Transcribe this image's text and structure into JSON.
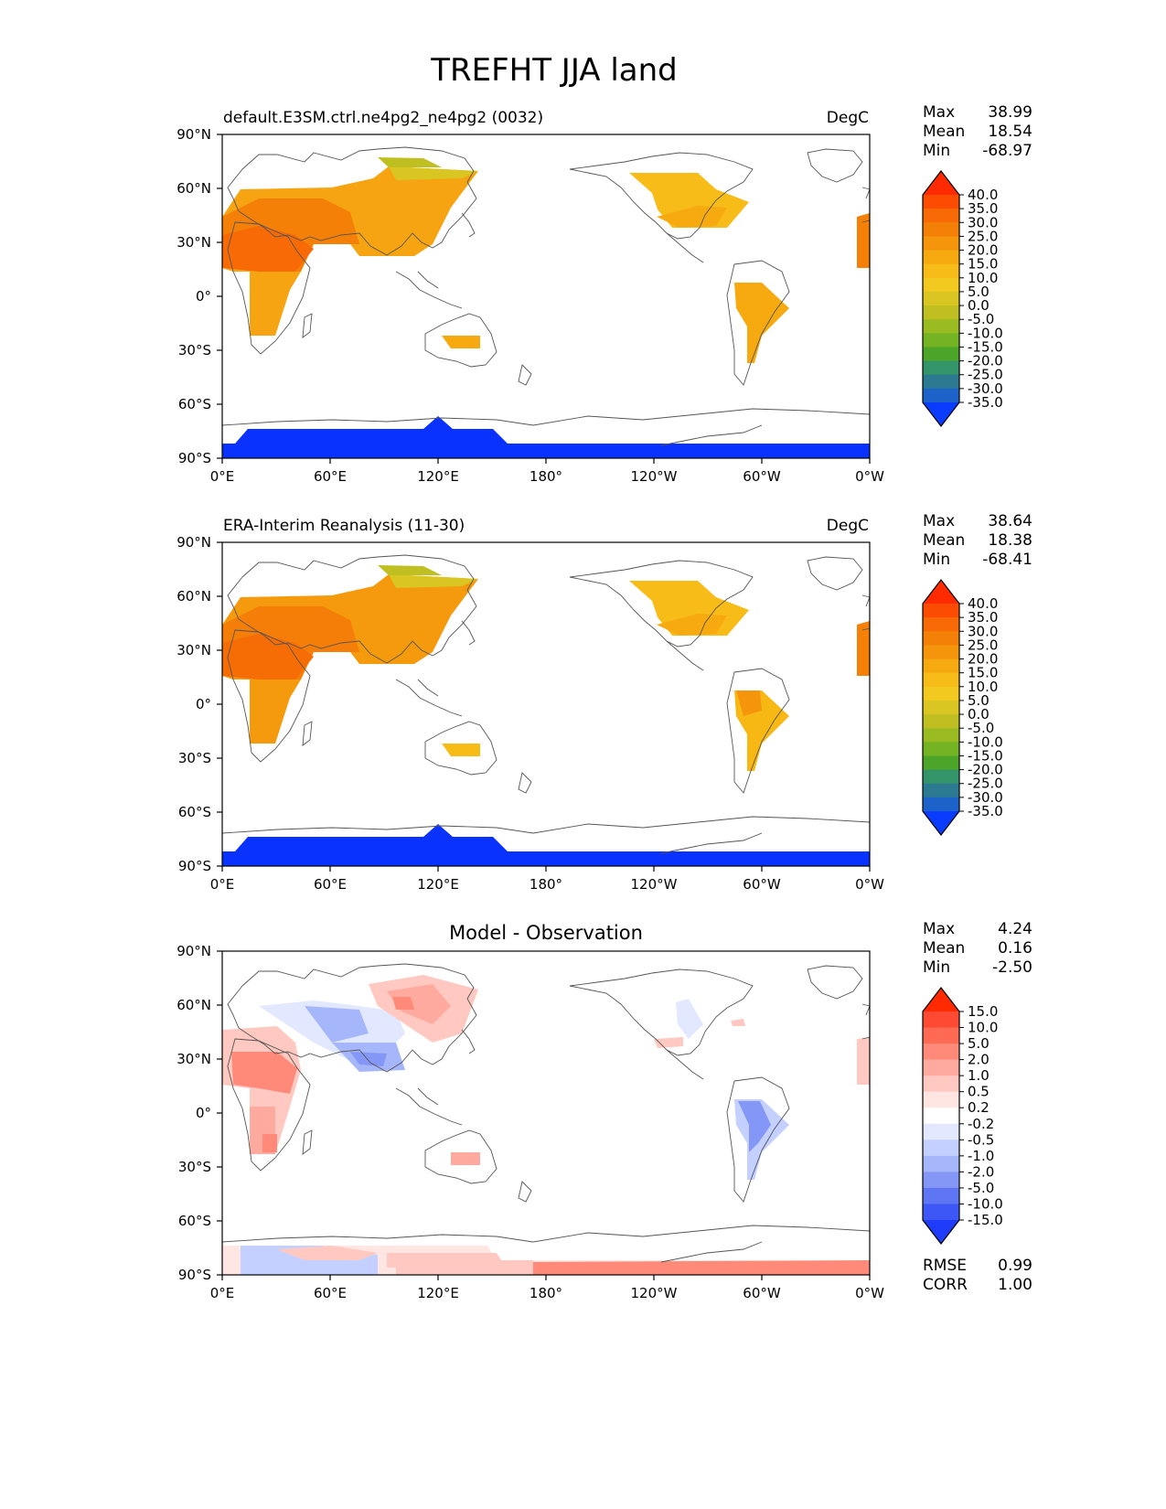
{
  "title": "TREFHT JJA land",
  "colors": {
    "land_outline": "#555555",
    "antarctica": "#0a32ff"
  },
  "panels": [
    {
      "id": "model",
      "left_title": "default.E3SM.ctrl.ne4pg2_ne4pg2 (0032)",
      "center_title": "",
      "units": "DegC",
      "stats": [
        {
          "label": "Max",
          "value": "38.99"
        },
        {
          "label": "Mean",
          "value": "18.54"
        },
        {
          "label": "Min",
          "value": "-68.97"
        }
      ]
    },
    {
      "id": "obs",
      "left_title": "ERA-Interim Reanalysis (11-30)",
      "center_title": "",
      "units": "DegC",
      "stats": [
        {
          "label": "Max",
          "value": "38.64"
        },
        {
          "label": "Mean",
          "value": "18.38"
        },
        {
          "label": "Min",
          "value": "-68.41"
        }
      ]
    },
    {
      "id": "diff",
      "left_title": "",
      "center_title": "Model - Observation",
      "units": "",
      "stats": [
        {
          "label": "Max",
          "value": "4.24"
        },
        {
          "label": "Mean",
          "value": "0.16"
        },
        {
          "label": "Min",
          "value": "-2.50"
        }
      ],
      "bottom_stats": [
        {
          "label": "RMSE",
          "value": "0.99"
        },
        {
          "label": "CORR",
          "value": "1.00"
        }
      ]
    }
  ],
  "axes": {
    "x_ticks": [
      "0°E",
      "60°E",
      "120°E",
      "180°",
      "120°W",
      "60°W",
      "0°W"
    ],
    "y_ticks": [
      "90°N",
      "60°N",
      "30°N",
      "0°",
      "30°S",
      "60°S",
      "90°S"
    ]
  },
  "colorbars": {
    "abs": {
      "labels": [
        "40.0",
        "35.0",
        "30.0",
        "25.0",
        "20.0",
        "15.0",
        "10.0",
        "5.0",
        "0.0",
        "-5.0",
        "-10.0",
        "-15.0",
        "-20.0",
        "-25.0",
        "-30.0",
        "-35.0"
      ],
      "colors": [
        "#ff2a00",
        "#fb4c02",
        "#f76a05",
        "#f48008",
        "#f4950b",
        "#f6aa10",
        "#f8bc18",
        "#f2c91e",
        "#d9c622",
        "#bfbf22",
        "#9bbb23",
        "#74b324",
        "#4ca528",
        "#33946a",
        "#2c7a92",
        "#1d62c8",
        "#0a3cff"
      ]
    },
    "diff": {
      "labels": [
        "15.0",
        "10.0",
        "5.0",
        "2.0",
        "1.0",
        "0.5",
        "0.2",
        "-0.2",
        "-0.5",
        "-1.0",
        "-2.0",
        "-5.0",
        "-10.0",
        "-15.0"
      ],
      "colors": [
        "#ff2a00",
        "#ff4a33",
        "#ff6a55",
        "#ff8a7a",
        "#ffaa9e",
        "#ffc9c2",
        "#ffe6e2",
        "#ffffff",
        "#e2e8ff",
        "#c4d0ff",
        "#a6b6fb",
        "#8497f6",
        "#5f76f4",
        "#3c57f6",
        "#1f3cfa"
      ]
    }
  }
}
